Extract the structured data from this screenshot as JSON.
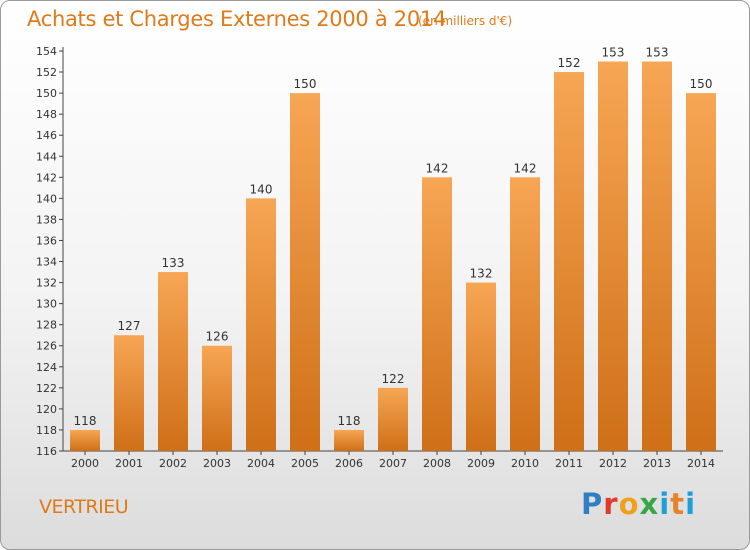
{
  "title": "Achats et Charges Externes 2000 à 2014",
  "subtitle": "(en milliers d'€)",
  "commune": "VERTRIEU",
  "brand": {
    "letters": [
      "P",
      "r",
      "o",
      "x",
      "i",
      "t",
      "i"
    ]
  },
  "colors": {
    "bar_top": "#f7a654",
    "bar_bottom": "#cf6f17",
    "accent": "#e07a19"
  },
  "chart_data": {
    "type": "bar",
    "categories": [
      "2000",
      "2001",
      "2002",
      "2003",
      "2004",
      "2005",
      "2006",
      "2007",
      "2008",
      "2009",
      "2010",
      "2011",
      "2012",
      "2013",
      "2014"
    ],
    "values": [
      118,
      127,
      133,
      126,
      140,
      150,
      118,
      122,
      142,
      132,
      142,
      152,
      153,
      153,
      150
    ],
    "ylim": [
      116,
      154
    ],
    "yticks": [
      116,
      118,
      120,
      122,
      124,
      126,
      128,
      130,
      132,
      134,
      136,
      138,
      140,
      142,
      144,
      146,
      148,
      150,
      152,
      154
    ],
    "grid": false,
    "xlabel": "",
    "ylabel": ""
  }
}
